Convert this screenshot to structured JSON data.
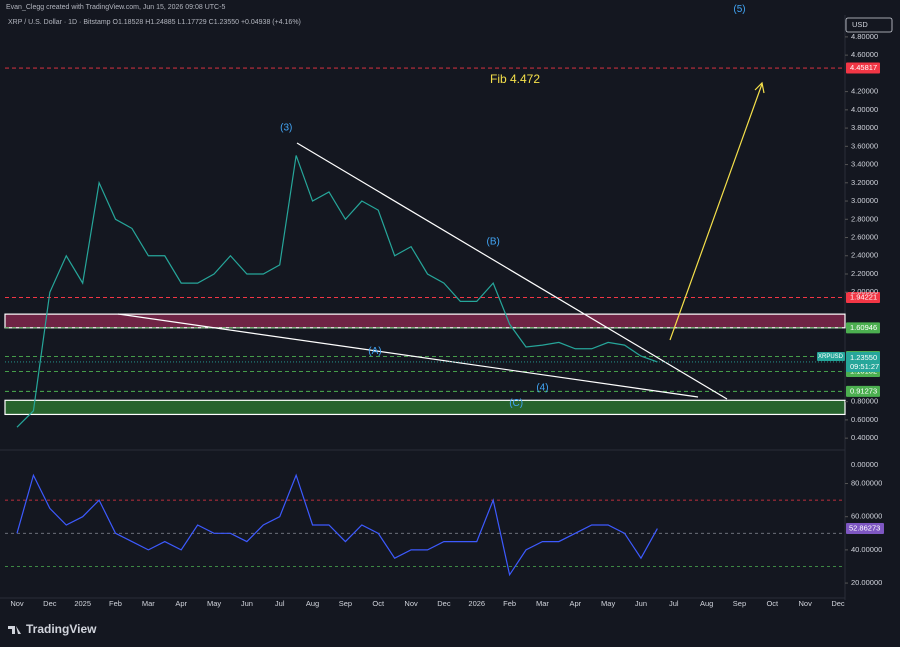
{
  "chart_data": {
    "type": "line",
    "header": "Evan_Clegg created with TradingView.com, Jun 15, 2026 09:08 UTC-5",
    "legend_text": "XRP / U.S. Dollar · 1D · Bitstamp  O1.18528 H1.24885 L1.17729 C1.23550 +0.04938 (+4.16%)",
    "currency": "USD",
    "brand": "TradingView",
    "categories": [
      "Nov",
      null,
      "Dec",
      null,
      "2025",
      null,
      "Feb",
      null,
      "Mar",
      null,
      "Apr",
      null,
      "May",
      null,
      "Jun",
      null,
      "Jul",
      null,
      "Aug",
      null,
      "Sep",
      null,
      "Oct",
      null,
      "Nov",
      null,
      "Dec",
      null,
      "2026",
      null,
      "Feb",
      null,
      "Mar",
      null,
      "Apr",
      null,
      "May",
      null,
      "Jun",
      null,
      "Jul",
      null,
      "Aug",
      null,
      "Sep",
      null,
      "Oct",
      null,
      "Nov",
      null,
      "Dec",
      null
    ],
    "series": [
      {
        "name": "XRPUSD",
        "color": "#26a69a",
        "values": [
          0.52,
          0.7,
          2.0,
          2.4,
          2.1,
          3.2,
          2.8,
          2.7,
          2.4,
          2.4,
          2.1,
          2.1,
          2.2,
          2.4,
          2.2,
          2.2,
          2.3,
          3.5,
          3.0,
          3.1,
          2.8,
          3.0,
          2.9,
          2.4,
          2.5,
          2.2,
          2.1,
          1.9,
          1.9,
          2.1,
          1.65,
          1.4,
          1.42,
          1.45,
          1.38,
          1.38,
          1.45,
          1.42,
          1.3,
          1.2355,
          null,
          null,
          null,
          null,
          null,
          null,
          null,
          null,
          null,
          null,
          null,
          null
        ]
      },
      {
        "name": "RSI",
        "color": "#3d5afe",
        "axis": "y2",
        "values": [
          50,
          85,
          65,
          55,
          60,
          70,
          50,
          45,
          40,
          45,
          40,
          55,
          50,
          50,
          45,
          55,
          60,
          85,
          55,
          55,
          45,
          55,
          50,
          35,
          40,
          40,
          45,
          45,
          45,
          70,
          25,
          40,
          45,
          45,
          50,
          55,
          55,
          50,
          35,
          52.86273,
          null,
          null,
          null,
          null,
          null,
          null,
          null,
          null,
          null,
          null,
          null,
          null
        ]
      }
    ],
    "ylim": [
      0.27,
      5.04
    ],
    "yticks": [
      {
        "value": 4.8,
        "label": "4.80000"
      },
      {
        "value": 4.6,
        "label": "4.60000"
      },
      {
        "value": 4.2,
        "label": "4.20000"
      },
      {
        "value": 4.0,
        "label": "4.00000"
      },
      {
        "value": 3.8,
        "label": "3.80000"
      },
      {
        "value": 3.6,
        "label": "3.60000"
      },
      {
        "value": 3.4,
        "label": "3.40000"
      },
      {
        "value": 3.2,
        "label": "3.20000"
      },
      {
        "value": 3.0,
        "label": "3.00000"
      },
      {
        "value": 2.8,
        "label": "2.80000"
      },
      {
        "value": 2.6,
        "label": "2.60000"
      },
      {
        "value": 2.4,
        "label": "2.40000"
      },
      {
        "value": 2.2,
        "label": "2.20000"
      },
      {
        "value": 2.0,
        "label": "2.00000"
      },
      {
        "value": 0.8,
        "label": "0.80000"
      },
      {
        "value": 0.6,
        "label": "0.60000"
      },
      {
        "value": 0.4,
        "label": "0.40000"
      }
    ],
    "extra_axis_label": "0.00000",
    "y2lim": [
      11,
      99
    ],
    "y2ticks": [
      {
        "value": 80,
        "label": "80.00000"
      },
      {
        "value": 60,
        "label": "60.00000"
      },
      {
        "value": 40,
        "label": "40.00000"
      },
      {
        "value": 20,
        "label": "20.00000"
      }
    ],
    "rsi_last_label": {
      "value": 52.86273,
      "label": "52.86273"
    },
    "rsi_levels": [
      {
        "value": 70,
        "color": "#f23645"
      },
      {
        "value": 50,
        "color": "#787b86"
      },
      {
        "value": 30,
        "color": "#4caf50"
      }
    ],
    "price_levels": [
      {
        "value": 4.45817,
        "color": "#f23645"
      },
      {
        "value": 1.94221,
        "color": "#f23645"
      },
      {
        "value": 1.60946,
        "color": "#4caf50"
      },
      {
        "value": 1.29476,
        "color": "#4caf50"
      },
      {
        "value": 1.13132,
        "color": "#4caf50"
      },
      {
        "value": 0.91273,
        "color": "#4caf50"
      }
    ],
    "last_price": {
      "value": 1.2355,
      "label": "1.23550",
      "symbol": "XRPUSD",
      "countdown": "09:51:27"
    },
    "zones": [
      {
        "from": 1.61,
        "to": 1.76,
        "color": "#8e2a52"
      },
      {
        "from": 0.66,
        "to": 0.815,
        "color": "#2e7d32"
      }
    ],
    "annotations": [
      {
        "text": "(5)",
        "x": 44,
        "y": 5.1
      },
      {
        "text": "(3)",
        "x": 16.4,
        "y": 3.8
      },
      {
        "text": "(B)",
        "x": 29,
        "y": 2.55
      },
      {
        "text": "(A)",
        "x": 21.8,
        "y": 1.35
      },
      {
        "text": "(4)",
        "x": 32,
        "y": 0.95
      },
      {
        "text": "(C)",
        "x": 30.4,
        "y": 0.78
      }
    ],
    "fib_label": "Fib 4.472"
  }
}
